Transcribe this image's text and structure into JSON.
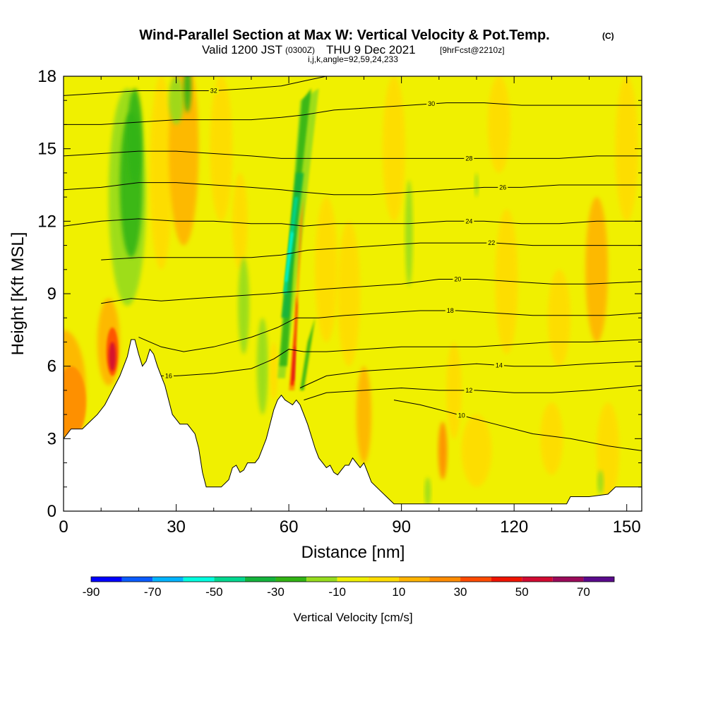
{
  "title": {
    "main": "Wind-Parallel Section at Max W: Vertical Velocity & Pot.Temp.",
    "copyright": "(C)",
    "valid_prefix": "Valid 1200 JST",
    "utc": "(0300Z)",
    "date": "THU 9 Dec 2021",
    "forecast": "[9hrFcst@2210z]",
    "params": "i,j,k,angle=92,59,24,233"
  },
  "chart_data": {
    "type": "heatmap",
    "xlabel": "Distance [nm]",
    "ylabel": "Height [Kft MSL]",
    "xlim": [
      0,
      154
    ],
    "ylim": [
      0,
      18
    ],
    "xticks": [
      0,
      30,
      60,
      90,
      120,
      150
    ],
    "yticks": [
      0,
      3,
      6,
      9,
      12,
      15,
      18
    ],
    "colorbar": {
      "title": "Vertical Velocity [cm/s]",
      "bounds": [
        -90,
        -80,
        -70,
        -60,
        -50,
        -40,
        -30,
        -20,
        -10,
        0,
        10,
        20,
        30,
        40,
        50,
        60,
        70,
        80
      ],
      "labels": [
        "-90",
        "-70",
        "-50",
        "-30",
        "-10",
        "10",
        "30",
        "50",
        "70"
      ],
      "label_values": [
        -90,
        -70,
        -50,
        -30,
        -10,
        10,
        30,
        50,
        70
      ],
      "colors": [
        "#0000ff",
        "#0a5cff",
        "#00b4ff",
        "#00ffe0",
        "#00d890",
        "#14b43c",
        "#32b414",
        "#96dc1e",
        "#f0f000",
        "#ffdc00",
        "#ffb400",
        "#ff8c00",
        "#ff4b00",
        "#f01400",
        "#d20a32",
        "#9b0a5a",
        "#5a0a8c"
      ]
    },
    "terrain": [
      [
        0,
        3.0
      ],
      [
        2,
        3.4
      ],
      [
        5,
        3.4
      ],
      [
        7,
        3.7
      ],
      [
        9,
        4.0
      ],
      [
        11,
        4.4
      ],
      [
        13,
        5.0
      ],
      [
        15,
        5.6
      ],
      [
        17,
        6.4
      ],
      [
        18,
        7.1
      ],
      [
        19,
        7.1
      ],
      [
        20,
        6.5
      ],
      [
        21,
        6.0
      ],
      [
        22,
        6.2
      ],
      [
        23,
        6.7
      ],
      [
        24,
        6.5
      ],
      [
        25,
        6.0
      ],
      [
        26,
        5.6
      ],
      [
        27,
        5.2
      ],
      [
        28,
        4.6
      ],
      [
        29,
        4.0
      ],
      [
        31,
        3.6
      ],
      [
        33,
        3.6
      ],
      [
        35,
        3.2
      ],
      [
        36,
        2.6
      ],
      [
        37,
        1.6
      ],
      [
        38,
        1.0
      ],
      [
        40,
        1.0
      ],
      [
        42,
        1.0
      ],
      [
        44,
        1.3
      ],
      [
        45,
        1.8
      ],
      [
        46,
        1.9
      ],
      [
        47,
        1.6
      ],
      [
        48,
        1.7
      ],
      [
        49,
        2.0
      ],
      [
        50,
        2.0
      ],
      [
        51,
        2.0
      ],
      [
        52,
        2.2
      ],
      [
        53,
        2.6
      ],
      [
        54,
        3.0
      ],
      [
        55,
        3.6
      ],
      [
        56,
        4.2
      ],
      [
        57,
        4.6
      ],
      [
        58,
        4.8
      ],
      [
        59,
        4.6
      ],
      [
        60,
        4.5
      ],
      [
        61,
        4.4
      ],
      [
        62,
        4.6
      ],
      [
        63,
        4.4
      ],
      [
        64,
        4.0
      ],
      [
        65,
        3.6
      ],
      [
        66,
        3.1
      ],
      [
        67,
        2.6
      ],
      [
        68,
        2.2
      ],
      [
        69,
        2.0
      ],
      [
        70,
        1.8
      ],
      [
        71,
        1.9
      ],
      [
        72,
        1.6
      ],
      [
        73,
        1.5
      ],
      [
        74,
        1.7
      ],
      [
        75,
        1.9
      ],
      [
        76,
        1.9
      ],
      [
        77,
        2.2
      ],
      [
        78,
        2.0
      ],
      [
        79,
        1.8
      ],
      [
        80,
        2.0
      ],
      [
        81,
        1.6
      ],
      [
        82,
        1.2
      ],
      [
        84,
        0.9
      ],
      [
        86,
        0.6
      ],
      [
        88,
        0.3
      ],
      [
        90,
        0.3
      ],
      [
        95,
        0.3
      ],
      [
        100,
        0.3
      ],
      [
        105,
        0.3
      ],
      [
        110,
        0.3
      ],
      [
        115,
        0.3
      ],
      [
        120,
        0.3
      ],
      [
        125,
        0.3
      ],
      [
        130,
        0.3
      ],
      [
        134,
        0.3
      ],
      [
        135,
        0.6
      ],
      [
        140,
        0.6
      ],
      [
        145,
        0.7
      ],
      [
        147,
        1.0
      ],
      [
        150,
        1.0
      ],
      [
        154,
        1.0
      ]
    ],
    "contours": [
      {
        "theta": 10,
        "label": "10",
        "label_x": 106,
        "pts": [
          [
            88,
            4.6
          ],
          [
            95,
            4.4
          ],
          [
            105,
            4.0
          ],
          [
            115,
            3.6
          ],
          [
            125,
            3.2
          ],
          [
            135,
            3.0
          ],
          [
            145,
            2.7
          ],
          [
            154,
            2.5
          ]
        ]
      },
      {
        "theta": 12,
        "label": "12",
        "label_x": 108,
        "pts": [
          [
            64,
            4.6
          ],
          [
            70,
            4.9
          ],
          [
            80,
            5.0
          ],
          [
            90,
            5.1
          ],
          [
            100,
            5.0
          ],
          [
            110,
            5.0
          ],
          [
            120,
            4.9
          ],
          [
            130,
            4.9
          ],
          [
            140,
            5.0
          ],
          [
            154,
            5.2
          ]
        ]
      },
      {
        "theta": 14,
        "label": "14",
        "label_x": 116,
        "pts": [
          [
            63,
            5.1
          ],
          [
            70,
            5.6
          ],
          [
            80,
            5.8
          ],
          [
            90,
            5.9
          ],
          [
            100,
            6.0
          ],
          [
            110,
            6.1
          ],
          [
            120,
            6.0
          ],
          [
            130,
            6.0
          ],
          [
            140,
            6.1
          ],
          [
            154,
            6.2
          ]
        ]
      },
      {
        "theta": 16,
        "label": "16",
        "label_x": 28,
        "pts": [
          [
            26,
            5.6
          ],
          [
            30,
            5.6
          ],
          [
            40,
            5.7
          ],
          [
            50,
            5.9
          ],
          [
            56,
            6.3
          ],
          [
            60,
            6.7
          ],
          [
            64,
            6.6
          ],
          [
            70,
            6.6
          ],
          [
            80,
            6.7
          ],
          [
            90,
            6.8
          ],
          [
            100,
            6.8
          ],
          [
            110,
            6.8
          ],
          [
            120,
            6.9
          ],
          [
            130,
            7.0
          ],
          [
            140,
            7.0
          ],
          [
            154,
            7.1
          ]
        ]
      },
      {
        "theta": 18,
        "label": "18",
        "label_x": 103,
        "pts": [
          [
            20,
            7.2
          ],
          [
            26,
            6.8
          ],
          [
            32,
            6.6
          ],
          [
            40,
            6.8
          ],
          [
            50,
            7.2
          ],
          [
            57,
            7.6
          ],
          [
            62,
            8.0
          ],
          [
            68,
            8.0
          ],
          [
            75,
            8.1
          ],
          [
            85,
            8.2
          ],
          [
            95,
            8.3
          ],
          [
            105,
            8.3
          ],
          [
            115,
            8.2
          ],
          [
            125,
            8.1
          ],
          [
            135,
            8.1
          ],
          [
            145,
            8.1
          ],
          [
            154,
            8.2
          ]
        ]
      },
      {
        "theta": 20,
        "label": "20",
        "label_x": 105,
        "pts": [
          [
            10,
            8.6
          ],
          [
            18,
            8.8
          ],
          [
            26,
            8.7
          ],
          [
            35,
            8.8
          ],
          [
            45,
            8.9
          ],
          [
            55,
            9.0
          ],
          [
            62,
            9.1
          ],
          [
            70,
            9.2
          ],
          [
            80,
            9.3
          ],
          [
            90,
            9.4
          ],
          [
            100,
            9.6
          ],
          [
            110,
            9.6
          ],
          [
            120,
            9.5
          ],
          [
            130,
            9.4
          ],
          [
            140,
            9.4
          ],
          [
            154,
            9.5
          ]
        ]
      },
      {
        "theta": 22,
        "label": "22",
        "label_x": 114,
        "pts": [
          [
            10,
            10.4
          ],
          [
            20,
            10.5
          ],
          [
            30,
            10.5
          ],
          [
            40,
            10.5
          ],
          [
            50,
            10.5
          ],
          [
            58,
            10.6
          ],
          [
            65,
            10.8
          ],
          [
            75,
            10.9
          ],
          [
            85,
            11.0
          ],
          [
            95,
            11.1
          ],
          [
            105,
            11.1
          ],
          [
            115,
            11.1
          ],
          [
            125,
            11.0
          ],
          [
            135,
            11.0
          ],
          [
            145,
            11.0
          ],
          [
            154,
            11.0
          ]
        ]
      },
      {
        "theta": 24,
        "label": "24",
        "label_x": 108,
        "pts": [
          [
            0,
            11.8
          ],
          [
            10,
            12.0
          ],
          [
            20,
            12.1
          ],
          [
            30,
            12.0
          ],
          [
            40,
            12.0
          ],
          [
            50,
            11.9
          ],
          [
            58,
            11.9
          ],
          [
            64,
            11.8
          ],
          [
            72,
            11.9
          ],
          [
            82,
            11.9
          ],
          [
            92,
            11.9
          ],
          [
            102,
            12.0
          ],
          [
            112,
            12.0
          ],
          [
            122,
            11.9
          ],
          [
            132,
            11.9
          ],
          [
            142,
            12.0
          ],
          [
            154,
            12.0
          ]
        ]
      },
      {
        "theta": 26,
        "label": "26",
        "label_x": 117,
        "pts": [
          [
            0,
            13.3
          ],
          [
            10,
            13.4
          ],
          [
            20,
            13.6
          ],
          [
            30,
            13.6
          ],
          [
            40,
            13.5
          ],
          [
            50,
            13.4
          ],
          [
            58,
            13.3
          ],
          [
            64,
            13.2
          ],
          [
            72,
            13.1
          ],
          [
            82,
            13.1
          ],
          [
            92,
            13.2
          ],
          [
            102,
            13.3
          ],
          [
            112,
            13.4
          ],
          [
            122,
            13.4
          ],
          [
            132,
            13.5
          ],
          [
            142,
            13.5
          ],
          [
            154,
            13.5
          ]
        ]
      },
      {
        "theta": 28,
        "label": "28",
        "label_x": 108,
        "pts": [
          [
            0,
            14.7
          ],
          [
            10,
            14.8
          ],
          [
            20,
            14.9
          ],
          [
            30,
            14.9
          ],
          [
            40,
            14.8
          ],
          [
            50,
            14.7
          ],
          [
            58,
            14.6
          ],
          [
            64,
            14.6
          ],
          [
            72,
            14.6
          ],
          [
            82,
            14.6
          ],
          [
            92,
            14.6
          ],
          [
            102,
            14.6
          ],
          [
            112,
            14.6
          ],
          [
            122,
            14.6
          ],
          [
            132,
            14.6
          ],
          [
            142,
            14.7
          ],
          [
            154,
            14.7
          ]
        ]
      },
      {
        "theta": 30,
        "label": "30",
        "label_x": 98,
        "pts": [
          [
            0,
            16.0
          ],
          [
            10,
            16.0
          ],
          [
            20,
            16.1
          ],
          [
            30,
            16.2
          ],
          [
            40,
            16.2
          ],
          [
            50,
            16.2
          ],
          [
            58,
            16.3
          ],
          [
            64,
            16.4
          ],
          [
            72,
            16.6
          ],
          [
            82,
            16.7
          ],
          [
            92,
            16.8
          ],
          [
            102,
            16.9
          ],
          [
            112,
            16.9
          ],
          [
            122,
            16.8
          ],
          [
            132,
            16.8
          ],
          [
            142,
            16.8
          ],
          [
            154,
            16.8
          ]
        ]
      },
      {
        "theta": 32,
        "label": "32",
        "label_x": 40,
        "pts": [
          [
            0,
            17.2
          ],
          [
            10,
            17.3
          ],
          [
            20,
            17.4
          ],
          [
            30,
            17.4
          ],
          [
            40,
            17.4
          ],
          [
            50,
            17.5
          ],
          [
            58,
            17.6
          ],
          [
            64,
            17.8
          ],
          [
            70,
            18.0
          ]
        ]
      }
    ]
  }
}
